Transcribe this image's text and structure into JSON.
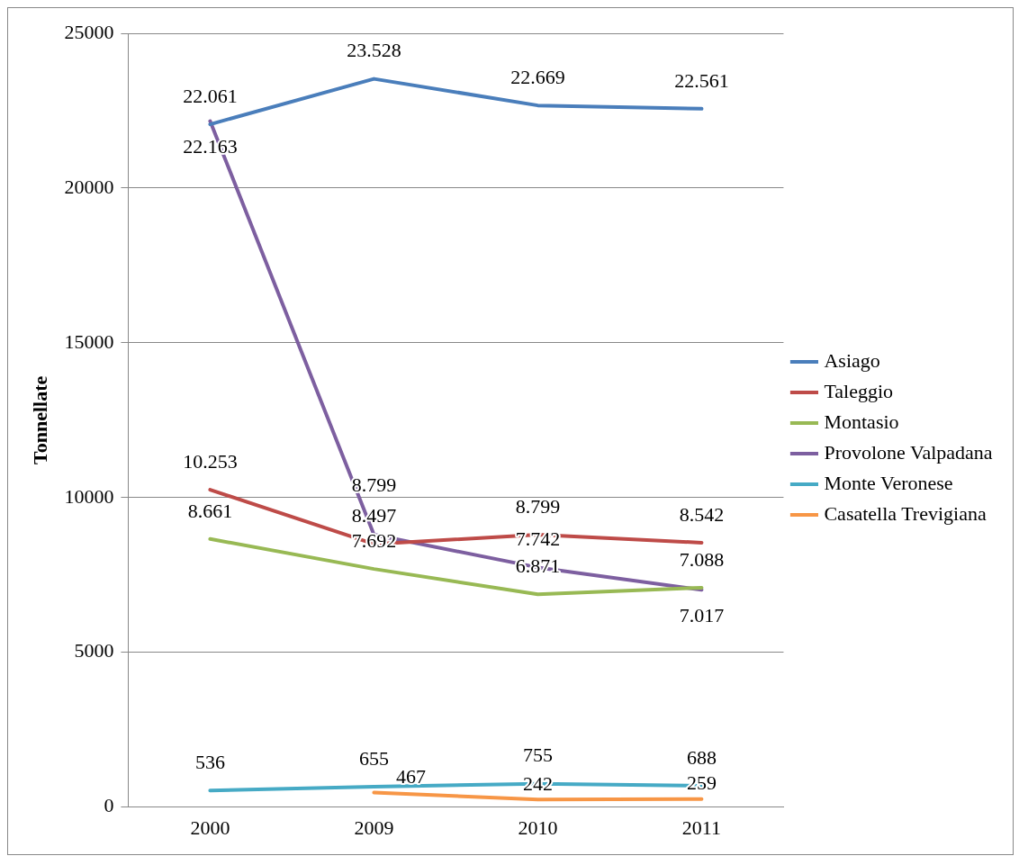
{
  "chart_data": {
    "type": "line",
    "ylabel": "Tonnellate",
    "categories": [
      "2000",
      "2009",
      "2010",
      "2011"
    ],
    "series": [
      {
        "name": "Asiago",
        "color": "#4a7ebb",
        "values": [
          22061,
          23528,
          22669,
          22561
        ],
        "value_labels": [
          "22.061",
          "23.528",
          "22.669",
          "22.561"
        ]
      },
      {
        "name": "Taleggio",
        "color": "#be4b48",
        "values": [
          10253,
          8497,
          8799,
          8542
        ],
        "value_labels": [
          "10.253",
          "8.497",
          "8.799",
          "8.542"
        ]
      },
      {
        "name": "Montasio",
        "color": "#98b954",
        "values": [
          8661,
          7692,
          6871,
          7088
        ],
        "value_labels": [
          "8.661",
          "7.692",
          "6.871",
          "7.088"
        ]
      },
      {
        "name": "Provolone Valpadana",
        "color": "#7d5fa0",
        "values": [
          22163,
          8799,
          7742,
          7017
        ],
        "value_labels": [
          "22.163",
          "8.799",
          "7.742",
          "7.017"
        ]
      },
      {
        "name": "Monte Veronese",
        "color": "#46aac5",
        "values": [
          536,
          655,
          755,
          688
        ],
        "value_labels": [
          "536",
          "655",
          "755",
          "688"
        ]
      },
      {
        "name": "Casatella Trevigiana",
        "color": "#f79646",
        "values": [
          null,
          467,
          242,
          259
        ],
        "value_labels": [
          null,
          "467",
          "242",
          "259"
        ]
      }
    ],
    "ylim": [
      0,
      25000
    ],
    "yticks": [
      0,
      5000,
      10000,
      15000,
      20000,
      25000
    ],
    "grid": "y",
    "legend": "right",
    "marker": "none",
    "line_style": "solid"
  }
}
